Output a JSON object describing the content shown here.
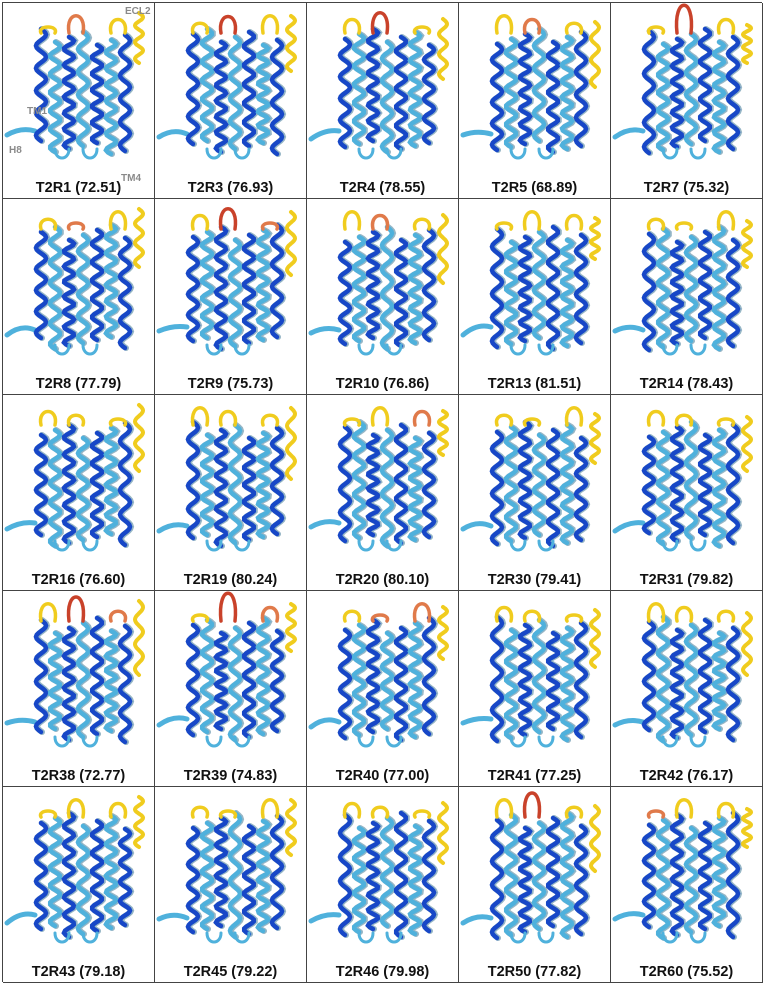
{
  "colors": {
    "very_high": "#1747c7",
    "confident": "#4fb1dc",
    "low": "#f0cc1e",
    "very_low": "#e07a4a",
    "loop_red": "#c9422a",
    "label": "#111111",
    "annotation": "#8a8a8a"
  },
  "panels": [
    {
      "label": "T2R1 (72.51)",
      "loops": [
        "low",
        "very_low",
        "low"
      ],
      "annotations": {
        "ecl2": "ECL2",
        "tm1": "TM1",
        "tm4": "TM4",
        "h8": "H8"
      }
    },
    {
      "label": "T2R3 (76.93)",
      "loops": [
        "low",
        "loop_red",
        "low"
      ]
    },
    {
      "label": "T2R4 (78.55)",
      "loops": [
        "low",
        "loop_red",
        "low"
      ]
    },
    {
      "label": "T2R5 (68.89)",
      "loops": [
        "low",
        "very_low",
        "low"
      ]
    },
    {
      "label": "T2R7 (75.32)",
      "loops": [
        "low",
        "loop_red",
        "low"
      ]
    },
    {
      "label": "T2R8 (77.79)",
      "loops": [
        "low",
        "very_low",
        "low"
      ]
    },
    {
      "label": "T2R9 (75.73)",
      "loops": [
        "low",
        "loop_red",
        "very_low"
      ]
    },
    {
      "label": "T2R10 (76.86)",
      "loops": [
        "low",
        "very_low",
        "low"
      ]
    },
    {
      "label": "T2R13 (81.51)",
      "loops": [
        "low",
        "low",
        "low"
      ]
    },
    {
      "label": "T2R14 (78.43)",
      "loops": [
        "low",
        "low",
        "low"
      ]
    },
    {
      "label": "T2R16 (76.60)",
      "loops": [
        "low",
        "low",
        "low"
      ]
    },
    {
      "label": "T2R19 (80.24)",
      "loops": [
        "low",
        "low",
        "low"
      ]
    },
    {
      "label": "T2R20 (80.10)",
      "loops": [
        "low",
        "low",
        "very_low"
      ]
    },
    {
      "label": "T2R30 (79.41)",
      "loops": [
        "low",
        "low",
        "low"
      ]
    },
    {
      "label": "T2R31 (79.82)",
      "loops": [
        "low",
        "low",
        "low"
      ]
    },
    {
      "label": "T2R38 (72.77)",
      "loops": [
        "low",
        "loop_red",
        "very_low"
      ]
    },
    {
      "label": "T2R39 (74.83)",
      "loops": [
        "low",
        "loop_red",
        "very_low"
      ]
    },
    {
      "label": "T2R40 (77.00)",
      "loops": [
        "low",
        "very_low",
        "very_low"
      ]
    },
    {
      "label": "T2R41 (77.25)",
      "loops": [
        "low",
        "low",
        "low"
      ]
    },
    {
      "label": "T2R42 (76.17)",
      "loops": [
        "low",
        "low",
        "low"
      ]
    },
    {
      "label": "T2R43 (79.18)",
      "loops": [
        "low",
        "low",
        "low"
      ]
    },
    {
      "label": "T2R45 (79.22)",
      "loops": [
        "low",
        "low",
        "low"
      ]
    },
    {
      "label": "T2R46 (79.98)",
      "loops": [
        "low",
        "low",
        "low"
      ]
    },
    {
      "label": "T2R50 (77.82)",
      "loops": [
        "low",
        "loop_red",
        "low"
      ]
    },
    {
      "label": "T2R60 (75.52)",
      "loops": [
        "very_low",
        "low",
        "low"
      ]
    }
  ]
}
